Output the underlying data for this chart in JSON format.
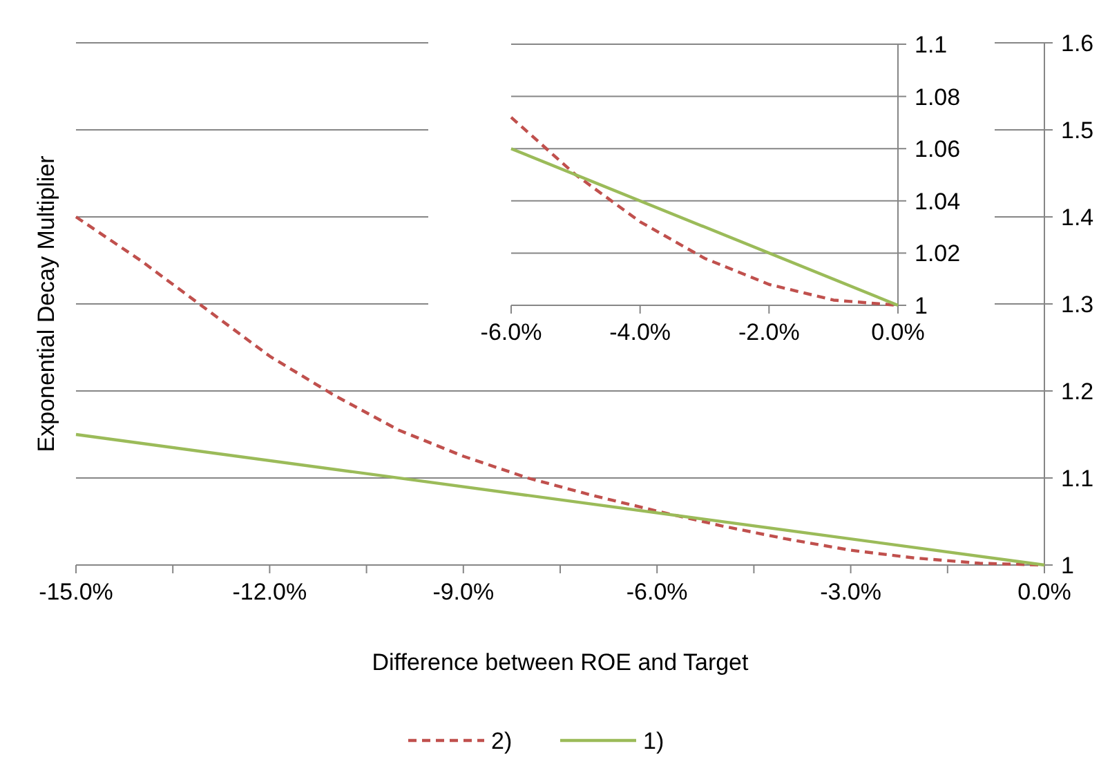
{
  "chart_data": [
    {
      "type": "line",
      "xlabel": "Difference between ROE and Target",
      "ylabel": "Exponential Decay Multiplier",
      "xlim": [
        -0.15,
        0
      ],
      "xticks": [
        {
          "value": -0.15,
          "label": "-15.0%"
        },
        {
          "value": -0.135,
          "label": null
        },
        {
          "value": -0.12,
          "label": "-12.0%"
        },
        {
          "value": -0.105,
          "label": null
        },
        {
          "value": -0.09,
          "label": "-9.0%"
        },
        {
          "value": -0.075,
          "label": null
        },
        {
          "value": -0.06,
          "label": "-6.0%"
        },
        {
          "value": -0.045,
          "label": null
        },
        {
          "value": -0.03,
          "label": "-3.0%"
        },
        {
          "value": -0.015,
          "label": null
        },
        {
          "value": 0,
          "label": "0.0%"
        }
      ],
      "ylim": [
        1,
        1.6
      ],
      "yticks": [
        1,
        1.1,
        1.2,
        1.3,
        1.4,
        1.5,
        1.6
      ],
      "grid": "y",
      "legend": "bottom",
      "series": [
        {
          "name": "2)",
          "color": "#c0504d",
          "line_style": "dashed",
          "x": [
            -0.15,
            -0.14,
            -0.13,
            -0.12,
            -0.11,
            -0.1,
            -0.09,
            -0.08,
            -0.07,
            -0.06,
            -0.05,
            -0.04,
            -0.03,
            -0.02,
            -0.01,
            0
          ],
          "values": [
            1.4,
            1.35,
            1.295,
            1.24,
            1.195,
            1.155,
            1.125,
            1.1,
            1.08,
            1.062,
            1.045,
            1.03,
            1.017,
            1.008,
            1.002,
            1
          ]
        },
        {
          "name": "1)",
          "color": "#9bbb59",
          "line_style": "solid",
          "x": [
            -0.15,
            0
          ],
          "values": [
            1.15,
            1
          ]
        }
      ]
    },
    {
      "type": "line",
      "xlim": [
        -0.06,
        0
      ],
      "xticks": [
        {
          "value": -0.06,
          "label": "-6.0%"
        },
        {
          "value": -0.04,
          "label": "-4.0%"
        },
        {
          "value": -0.02,
          "label": "-2.0%"
        },
        {
          "value": 0,
          "label": "0.0%"
        }
      ],
      "ylim": [
        1,
        1.1
      ],
      "yticks": [
        1,
        1.02,
        1.04,
        1.06,
        1.08,
        1.1
      ],
      "grid": "y",
      "series": [
        {
          "color": "#c0504d",
          "line_style": "dashed",
          "x": [
            -0.06,
            -0.05,
            -0.04,
            -0.03,
            -0.02,
            -0.01,
            0
          ],
          "values": [
            1.072,
            1.05,
            1.032,
            1.018,
            1.008,
            1.002,
            1
          ]
        },
        {
          "color": "#9bbb59",
          "line_style": "solid",
          "x": [
            -0.06,
            0
          ],
          "values": [
            1.06,
            1
          ]
        }
      ]
    }
  ]
}
